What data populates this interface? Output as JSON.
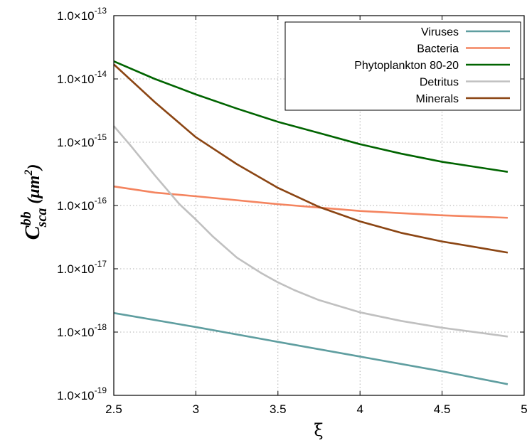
{
  "chart_data": {
    "type": "line",
    "title": "",
    "xlabel": "ξ",
    "ylabel": {
      "symbol": "C",
      "superscript": "bb",
      "subscript": "sca",
      "unit_open": " (μm",
      "unit_power": "2",
      "unit_close": ")"
    },
    "xlim": [
      2.5,
      5
    ],
    "ylim": [
      1e-19,
      1e-13
    ],
    "yscale": "log",
    "grid": true,
    "legend_position": "top-right",
    "x_ticks": [
      {
        "value": 2.5,
        "label": "2.5"
      },
      {
        "value": 3,
        "label": "3"
      },
      {
        "value": 3.5,
        "label": "3.5"
      },
      {
        "value": 4,
        "label": "4"
      },
      {
        "value": 4.5,
        "label": "4.5"
      },
      {
        "value": 5,
        "label": "5"
      }
    ],
    "y_ticks": [
      {
        "exp": -19,
        "mantissa": "1.0×10",
        "exponent": "-19"
      },
      {
        "exp": -18,
        "mantissa": "1.0×10",
        "exponent": "-18"
      },
      {
        "exp": -17,
        "mantissa": "1.0×10",
        "exponent": "-17"
      },
      {
        "exp": -16,
        "mantissa": "1.0×10",
        "exponent": "-16"
      },
      {
        "exp": -15,
        "mantissa": "1.0×10",
        "exponent": "-15"
      },
      {
        "exp": -14,
        "mantissa": "1.0×10",
        "exponent": "-14"
      },
      {
        "exp": -13,
        "mantissa": "1.0×10",
        "exponent": "-13"
      }
    ],
    "x": [
      2.5,
      3.0,
      3.5,
      4.0,
      4.5,
      4.9
    ],
    "series": [
      {
        "name": "Viruses",
        "color": "#5f9ea0",
        "x": [
          2.5,
          3.0,
          3.5,
          4.0,
          4.5,
          4.9
        ],
        "values": [
          2e-18,
          1.2e-18,
          7e-19,
          4.1e-19,
          2.4e-19,
          1.5e-19
        ]
      },
      {
        "name": "Bacteria",
        "color": "#f4845f",
        "x": [
          2.5,
          2.75,
          3.0,
          3.5,
          4.0,
          4.5,
          4.9
        ],
        "values": [
          2e-16,
          1.6e-16,
          1.4e-16,
          1.05e-16,
          8.2e-17,
          7e-17,
          6.4e-17
        ]
      },
      {
        "name": "Phytoplankton 80-20",
        "color": "#006400",
        "x": [
          2.5,
          2.75,
          3.0,
          3.25,
          3.5,
          3.75,
          4.0,
          4.25,
          4.5,
          4.75,
          4.9
        ],
        "values": [
          1.9e-14,
          1e-14,
          5.7e-15,
          3.4e-15,
          2.1e-15,
          1.4e-15,
          9.3e-16,
          6.6e-16,
          4.9e-16,
          3.9e-16,
          3.4e-16
        ]
      },
      {
        "name": "Detritus",
        "color": "#c0c0c0",
        "x": [
          2.5,
          2.6,
          2.75,
          2.9,
          3.0,
          3.1,
          3.25,
          3.4,
          3.5,
          3.6,
          3.75,
          4.0,
          4.25,
          4.5,
          4.75,
          4.9
        ],
        "values": [
          1.8e-15,
          9e-16,
          3e-16,
          1.05e-16,
          6e-17,
          3.3e-17,
          1.5e-17,
          8.5e-18,
          6.1e-18,
          4.6e-18,
          3.2e-18,
          2.05e-18,
          1.5e-18,
          1.17e-18,
          9.6e-19,
          8.5e-19
        ]
      },
      {
        "name": "Minerals",
        "color": "#8b4513",
        "x": [
          2.5,
          2.75,
          3.0,
          3.25,
          3.5,
          3.75,
          4.0,
          4.25,
          4.5,
          4.75,
          4.9
        ],
        "values": [
          1.7e-14,
          4.3e-15,
          1.2e-15,
          4.5e-16,
          1.9e-16,
          9.5e-17,
          5.6e-17,
          3.7e-17,
          2.7e-17,
          2.1e-17,
          1.8e-17
        ]
      }
    ]
  }
}
